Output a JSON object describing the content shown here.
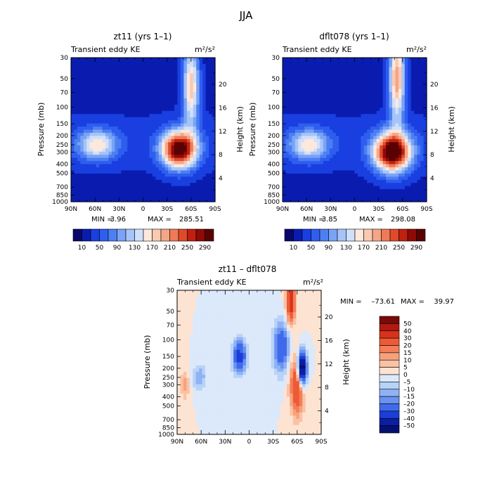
{
  "figure_title": "JJA",
  "chart_data": [
    {
      "type": "heatmap",
      "id": "panel-zt11",
      "title": "zt11 (yrs 1–1)",
      "subtitle_left": "Transient eddy KE",
      "units": "m²/s²",
      "xlabel": "",
      "ylabel": "Pressure (mb)",
      "ylabel_right": "Height (km)",
      "x_ticks": [
        "90N",
        "60N",
        "30N",
        "0",
        "30S",
        "60S",
        "90S"
      ],
      "y_ticks": [
        "30",
        "50",
        "70",
        "100",
        "150",
        "200",
        "250",
        "300",
        "400",
        "500",
        "700",
        "850",
        "1000"
      ],
      "y_ticks_right": [
        "4",
        "8",
        "12",
        "16",
        "20"
      ],
      "ylim": [
        1000,
        30
      ],
      "stats": {
        "min_label": "MIN =",
        "min": "3.96",
        "max_label": "MAX =",
        "max": "285.51"
      },
      "max_value": 285.51,
      "features": [
        {
          "lat": 57,
          "p": 250,
          "value": 130,
          "wlat": 17,
          "wz": 1.8
        },
        {
          "lat": -45,
          "p": 280,
          "value": 285.5,
          "wlat": 15,
          "wz": 2.2
        },
        {
          "lat": -60,
          "p": 60,
          "value": 160,
          "wlat": 7,
          "wz": 5
        }
      ],
      "colorbar": {
        "levels": [
          "10",
          "50",
          "90",
          "130",
          "170",
          "210",
          "250",
          "290"
        ],
        "colors": [
          "#08086b",
          "#0a1cb0",
          "#1a3fe0",
          "#2f5eef",
          "#4c7ff2",
          "#7aa3f5",
          "#a6c4f8",
          "#cfe0fb",
          "#fde8dc",
          "#f9c9b2",
          "#f5a687",
          "#ef7a58",
          "#e04a2a",
          "#c02010",
          "#8e0a06",
          "#5a0203"
        ]
      }
    },
    {
      "type": "heatmap",
      "id": "panel-dflt078",
      "title": "dflt078 (yrs 1–1)",
      "subtitle_left": "Transient eddy KE",
      "units": "m²/s²",
      "xlabel": "",
      "ylabel": "Pressure (mb)",
      "ylabel_right": "Height (km)",
      "x_ticks": [
        "90N",
        "60N",
        "30N",
        "0",
        "30S",
        "60S",
        "90S"
      ],
      "y_ticks": [
        "30",
        "50",
        "70",
        "100",
        "150",
        "200",
        "250",
        "300",
        "400",
        "500",
        "700",
        "850",
        "1000"
      ],
      "y_ticks_right": [
        "4",
        "8",
        "12",
        "16",
        "20"
      ],
      "ylim": [
        1000,
        30
      ],
      "stats": {
        "min_label": "MIN =",
        "min": "3.85",
        "max_label": "MAX =",
        "max": "298.08"
      },
      "max_value": 298.08,
      "features": [
        {
          "lat": 57,
          "p": 250,
          "value": 130,
          "wlat": 17,
          "wz": 1.8
        },
        {
          "lat": -47,
          "p": 300,
          "value": 298.1,
          "wlat": 16,
          "wz": 2.3
        },
        {
          "lat": -53,
          "p": 50,
          "value": 180,
          "wlat": 7,
          "wz": 5.5
        }
      ],
      "colorbar": {
        "levels": [
          "10",
          "50",
          "90",
          "130",
          "170",
          "210",
          "250",
          "290"
        ],
        "colors": [
          "#08086b",
          "#0a1cb0",
          "#1a3fe0",
          "#2f5eef",
          "#4c7ff2",
          "#7aa3f5",
          "#a6c4f8",
          "#cfe0fb",
          "#fde8dc",
          "#f9c9b2",
          "#f5a687",
          "#ef7a58",
          "#e04a2a",
          "#c02010",
          "#8e0a06",
          "#5a0203"
        ]
      }
    },
    {
      "type": "heatmap",
      "id": "panel-diff",
      "title": "zt11 – dflt078",
      "subtitle_left": "Transient eddy KE",
      "units": "m²/s²",
      "xlabel": "",
      "ylabel": "Pressure (mb)",
      "ylabel_right": "Height (km)",
      "x_ticks": [
        "90N",
        "60N",
        "30N",
        "0",
        "30S",
        "60S",
        "90S"
      ],
      "y_ticks": [
        "30",
        "50",
        "70",
        "100",
        "150",
        "200",
        "250",
        "300",
        "400",
        "500",
        "700",
        "850",
        "1000"
      ],
      "y_ticks_right": [
        "4",
        "8",
        "12",
        "16",
        "20"
      ],
      "ylim": [
        1000,
        30
      ],
      "stats": {
        "min_label": "MIN =",
        "min": "–73.61",
        "max_label": "MAX =",
        "max": "39.97"
      },
      "features": [
        {
          "lat": -60,
          "p": 300,
          "value": 35,
          "wlat": 6,
          "wz": 3.5
        },
        {
          "lat": -52,
          "p": 40,
          "value": 40,
          "wlat": 4,
          "wz": 2.5
        },
        {
          "lat": -40,
          "p": 120,
          "value": -30,
          "wlat": 7,
          "wz": 3
        },
        {
          "lat": -66,
          "p": 200,
          "value": -73.6,
          "wlat": 4,
          "wz": 2
        },
        {
          "lat": 12,
          "p": 150,
          "value": -35,
          "wlat": 6,
          "wz": 2
        },
        {
          "lat": 62,
          "p": 250,
          "value": -15,
          "wlat": 6,
          "wz": 1.5
        },
        {
          "lat": 80,
          "p": 300,
          "value": 12,
          "wlat": 4,
          "wz": 1.8
        }
      ],
      "colorbar": {
        "levels": [
          "50",
          "40",
          "30",
          "20",
          "15",
          "10",
          "5",
          "0",
          "–5",
          "–10",
          "–15",
          "–20",
          "–30",
          "–40",
          "–50"
        ],
        "colors": [
          "#7a0a08",
          "#b01a10",
          "#d8321c",
          "#ee5a36",
          "#f47e58",
          "#f7a17c",
          "#fac2a4",
          "#fde3d2",
          "#dbe9fb",
          "#b8d2f8",
          "#8fb2f4",
          "#6a92f1",
          "#3f6aea",
          "#1b3ed6",
          "#0b1ea4",
          "#061070"
        ]
      }
    }
  ]
}
